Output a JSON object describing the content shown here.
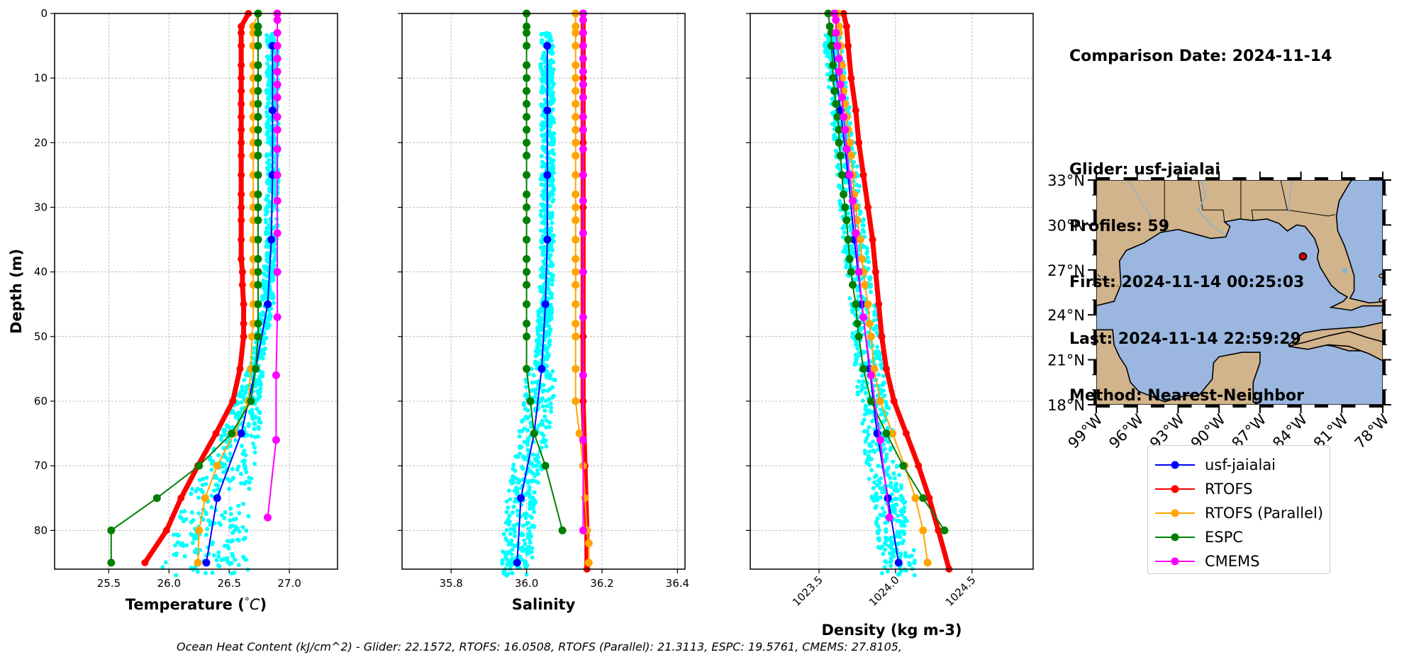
{
  "info": {
    "comparison_date": "Comparison Date: 2024-11-14",
    "glider": "Glider: usf-jaialai",
    "profiles": "Profiles: 59",
    "first": "First: 2024-11-14 00:25:03",
    "last": "Last: 2024-11-14 22:59:29",
    "method": "Method: Nearest-Neighbor"
  },
  "footer": "Ocean Heat Content (kJ/cm^2) - Glider: 22.1572,  RTOFS: 16.0508,  RTOFS (Parallel): 21.3113,  ESPC: 19.5761,  CMEMS: 27.8105,",
  "colors": {
    "usf-jaialai": "#0000ff",
    "RTOFS": "#ff0000",
    "RTOFS (Parallel)": "#ffa500",
    "ESPC": "#008000",
    "CMEMS": "#ff00ff",
    "glider_scatter": "#00ffff",
    "ocean": "#9bb7e0",
    "land": "#d2b48c"
  },
  "legend": [
    "usf-jaialai",
    "RTOFS",
    "RTOFS (Parallel)",
    "ESPC",
    "CMEMS"
  ],
  "chart_data": [
    {
      "type": "line",
      "xlabel": "Temperature (°C)",
      "ylabel": "Depth (m)",
      "xlim": [
        25.05,
        27.4
      ],
      "ylim": [
        86,
        0
      ],
      "xticks": [
        25.5,
        26.0,
        26.5,
        27.0
      ],
      "xtick_labels": [
        "25.5",
        "26.0",
        "26.5",
        "27.0"
      ],
      "yticks": [
        0,
        10,
        20,
        30,
        40,
        50,
        60,
        70,
        80
      ],
      "grid": true,
      "series": [
        {
          "name": "usf-jaialai",
          "depth": [
            5,
            15,
            25,
            35,
            45,
            55,
            65,
            75,
            85
          ],
          "values": [
            26.86,
            26.86,
            26.86,
            26.85,
            26.82,
            26.72,
            26.6,
            26.4,
            26.31
          ]
        },
        {
          "name": "RTOFS",
          "depth": [
            0,
            2,
            3,
            5,
            8,
            10,
            12,
            14,
            16,
            18,
            20,
            22,
            25,
            28,
            30,
            32,
            35,
            38,
            40,
            42,
            45,
            48,
            50,
            55,
            60,
            65,
            70,
            75,
            80,
            85
          ],
          "values": [
            26.66,
            26.6,
            26.6,
            26.6,
            26.6,
            26.6,
            26.6,
            26.6,
            26.6,
            26.6,
            26.6,
            26.6,
            26.6,
            26.6,
            26.6,
            26.6,
            26.6,
            26.6,
            26.61,
            26.61,
            26.62,
            26.62,
            26.62,
            26.59,
            26.53,
            26.39,
            26.24,
            26.1,
            25.98,
            25.8
          ],
          "markers": false
        },
        {
          "name": "RTOFS (Parallel)",
          "depth": [
            0,
            2,
            3,
            5,
            8,
            10,
            12,
            14,
            16,
            18,
            20,
            22,
            25,
            28,
            30,
            32,
            35,
            38,
            40,
            42,
            45,
            48,
            50,
            55,
            60,
            65,
            70,
            75,
            80,
            85
          ],
          "values": [
            26.74,
            26.7,
            26.7,
            26.7,
            26.7,
            26.7,
            26.7,
            26.7,
            26.7,
            26.7,
            26.7,
            26.7,
            26.7,
            26.7,
            26.7,
            26.7,
            26.7,
            26.7,
            26.7,
            26.7,
            26.7,
            26.7,
            26.69,
            26.68,
            26.66,
            26.54,
            26.4,
            26.3,
            26.25,
            26.24
          ]
        },
        {
          "name": "ESPC",
          "depth": [
            0,
            2,
            3,
            5,
            8,
            10,
            12,
            14,
            16,
            18,
            20,
            22,
            25,
            28,
            30,
            32,
            35,
            38,
            40,
            42,
            45,
            48,
            50,
            55,
            60,
            65,
            70,
            75,
            80,
            85
          ],
          "values": [
            26.74,
            26.74,
            26.74,
            26.74,
            26.74,
            26.74,
            26.74,
            26.74,
            26.74,
            26.74,
            26.74,
            26.74,
            26.74,
            26.74,
            26.74,
            26.74,
            26.74,
            26.74,
            26.74,
            26.74,
            26.74,
            26.74,
            26.74,
            26.72,
            26.68,
            26.52,
            26.25,
            25.9,
            25.52,
            25.52
          ]
        },
        {
          "name": "CMEMS",
          "depth": [
            0,
            1,
            3,
            5,
            7,
            9,
            11,
            13,
            16,
            18,
            21,
            25,
            29,
            34,
            40,
            47,
            56,
            66,
            78
          ],
          "values": [
            26.9,
            26.9,
            26.9,
            26.9,
            26.9,
            26.9,
            26.9,
            26.9,
            26.9,
            26.9,
            26.9,
            26.9,
            26.9,
            26.9,
            26.9,
            26.9,
            26.89,
            26.89,
            26.82
          ]
        }
      ]
    },
    {
      "type": "line",
      "xlabel": "Salinity",
      "xlim": [
        35.67,
        36.42
      ],
      "ylim": [
        86,
        0
      ],
      "xticks": [
        35.8,
        36.0,
        36.2,
        36.4
      ],
      "xtick_labels": [
        "35.8",
        "36.0",
        "36.2",
        "36.4"
      ],
      "yticks": [
        0,
        10,
        20,
        30,
        40,
        50,
        60,
        70,
        80
      ],
      "grid": true,
      "series": [
        {
          "name": "usf-jaialai",
          "depth": [
            5,
            15,
            25,
            35,
            45,
            55,
            65,
            75,
            85
          ],
          "values": [
            36.055,
            36.055,
            36.055,
            36.055,
            36.05,
            36.04,
            36.02,
            35.985,
            35.975
          ]
        },
        {
          "name": "RTOFS",
          "depth": [
            0,
            5,
            10,
            20,
            30,
            40,
            50,
            60,
            70,
            80,
            86
          ],
          "values": [
            36.15,
            36.15,
            36.15,
            36.15,
            36.15,
            36.15,
            36.15,
            36.15,
            36.155,
            36.16,
            36.16
          ],
          "markers": false
        },
        {
          "name": "RTOFS (Parallel)",
          "depth": [
            0,
            2,
            3,
            5,
            8,
            10,
            12,
            14,
            16,
            18,
            20,
            22,
            25,
            28,
            30,
            32,
            35,
            38,
            40,
            42,
            45,
            48,
            50,
            55,
            60,
            65,
            70,
            75,
            80,
            82,
            85
          ],
          "values": [
            36.13,
            36.13,
            36.13,
            36.13,
            36.13,
            36.13,
            36.13,
            36.13,
            36.13,
            36.13,
            36.13,
            36.13,
            36.13,
            36.13,
            36.13,
            36.13,
            36.13,
            36.13,
            36.13,
            36.13,
            36.13,
            36.13,
            36.13,
            36.13,
            36.13,
            36.14,
            36.15,
            36.155,
            36.16,
            36.165,
            36.165
          ]
        },
        {
          "name": "ESPC",
          "depth": [
            0,
            2,
            3,
            5,
            8,
            10,
            12,
            14,
            16,
            18,
            20,
            22,
            25,
            28,
            30,
            32,
            35,
            38,
            40,
            42,
            45,
            48,
            50,
            55,
            60,
            65,
            70,
            80
          ],
          "values": [
            36.0,
            36.0,
            36.0,
            36.0,
            36.0,
            36.0,
            36.0,
            36.0,
            36.0,
            36.0,
            36.0,
            36.0,
            36.0,
            36.0,
            36.0,
            36.0,
            36.0,
            36.0,
            36.0,
            36.0,
            36.0,
            36.0,
            36.0,
            36.0,
            36.01,
            36.02,
            36.05,
            36.095
          ]
        },
        {
          "name": "CMEMS",
          "depth": [
            0,
            1,
            3,
            5,
            7,
            9,
            11,
            13,
            16,
            18,
            21,
            25,
            29,
            34,
            40,
            47,
            56,
            66,
            80
          ],
          "values": [
            36.15,
            36.15,
            36.15,
            36.15,
            36.15,
            36.15,
            36.15,
            36.15,
            36.15,
            36.15,
            36.15,
            36.15,
            36.15,
            36.15,
            36.15,
            36.15,
            36.15,
            36.15,
            36.15
          ]
        }
      ]
    },
    {
      "type": "line",
      "xlabel": "Density (kg m-3)",
      "xlim": [
        1023.05,
        1024.9
      ],
      "ylim": [
        86,
        0
      ],
      "xticks": [
        1023.5,
        1024.0,
        1024.5
      ],
      "xtick_labels": [
        "1023.5",
        "1024.0",
        "1024.5"
      ],
      "yticks": [
        0,
        10,
        20,
        30,
        40,
        50,
        60,
        70,
        80
      ],
      "grid": true,
      "series": [
        {
          "name": "usf-jaialai",
          "depth": [
            5,
            15,
            25,
            35,
            45,
            55,
            65,
            75,
            85
          ],
          "values": [
            1023.59,
            1023.64,
            1023.69,
            1023.73,
            1023.78,
            1023.83,
            1023.88,
            1023.95,
            1024.02
          ]
        },
        {
          "name": "RTOFS",
          "depth": [
            0,
            2,
            5,
            10,
            15,
            20,
            25,
            30,
            35,
            40,
            45,
            50,
            55,
            60,
            65,
            70,
            75,
            80,
            86
          ],
          "values": [
            1023.66,
            1023.68,
            1023.69,
            1023.71,
            1023.74,
            1023.76,
            1023.79,
            1023.82,
            1023.85,
            1023.87,
            1023.89,
            1023.91,
            1023.94,
            1023.99,
            1024.07,
            1024.15,
            1024.22,
            1024.28,
            1024.35
          ],
          "markers": false
        },
        {
          "name": "RTOFS (Parallel)",
          "depth": [
            0,
            2,
            3,
            5,
            8,
            10,
            12,
            14,
            16,
            18,
            20,
            22,
            25,
            28,
            30,
            32,
            35,
            38,
            40,
            42,
            45,
            48,
            50,
            55,
            60,
            65,
            70,
            75,
            80,
            85
          ],
          "values": [
            1023.62,
            1023.63,
            1023.63,
            1023.64,
            1023.65,
            1023.65,
            1023.66,
            1023.67,
            1023.68,
            1023.69,
            1023.7,
            1023.71,
            1023.72,
            1023.73,
            1023.74,
            1023.75,
            1023.77,
            1023.78,
            1023.79,
            1023.8,
            1023.82,
            1023.83,
            1023.84,
            1023.86,
            1023.9,
            1023.98,
            1024.06,
            1024.13,
            1024.18,
            1024.21
          ]
        },
        {
          "name": "ESPC",
          "depth": [
            0,
            2,
            3,
            5,
            8,
            10,
            12,
            14,
            16,
            18,
            20,
            22,
            25,
            28,
            30,
            32,
            35,
            38,
            40,
            42,
            45,
            48,
            50,
            55,
            60,
            65,
            70,
            75,
            80
          ],
          "values": [
            1023.56,
            1023.57,
            1023.58,
            1023.58,
            1023.59,
            1023.59,
            1023.6,
            1023.61,
            1023.62,
            1023.63,
            1023.63,
            1023.64,
            1023.65,
            1023.66,
            1023.67,
            1023.68,
            1023.69,
            1023.7,
            1023.71,
            1023.72,
            1023.74,
            1023.75,
            1023.76,
            1023.79,
            1023.84,
            1023.94,
            1024.05,
            1024.18,
            1024.32
          ]
        },
        {
          "name": "CMEMS",
          "depth": [
            0,
            1,
            3,
            5,
            7,
            9,
            11,
            13,
            16,
            18,
            21,
            25,
            29,
            34,
            40,
            47,
            56,
            66,
            78
          ],
          "values": [
            1023.6,
            1023.61,
            1023.61,
            1023.62,
            1023.63,
            1023.63,
            1023.64,
            1023.65,
            1023.66,
            1023.67,
            1023.68,
            1023.7,
            1023.72,
            1023.74,
            1023.76,
            1023.79,
            1023.84,
            1023.9,
            1023.96
          ]
        }
      ]
    },
    {
      "type": "map",
      "lon_ticks": [
        -99,
        -96,
        -93,
        -90,
        -87,
        -84,
        -81,
        -78
      ],
      "lon_labels": [
        "99°W",
        "96°W",
        "93°W",
        "90°W",
        "87°W",
        "84°W",
        "81°W",
        "78°W"
      ],
      "lat_ticks": [
        18,
        21,
        24,
        27,
        30,
        33
      ],
      "lat_labels": [
        "18°N",
        "21°N",
        "24°N",
        "27°N",
        "30°N",
        "33°N"
      ],
      "lon_range": [
        -99,
        -78
      ],
      "lat_range": [
        18,
        33
      ],
      "glider_position": {
        "lon": -83.85,
        "lat": 27.9
      }
    }
  ]
}
